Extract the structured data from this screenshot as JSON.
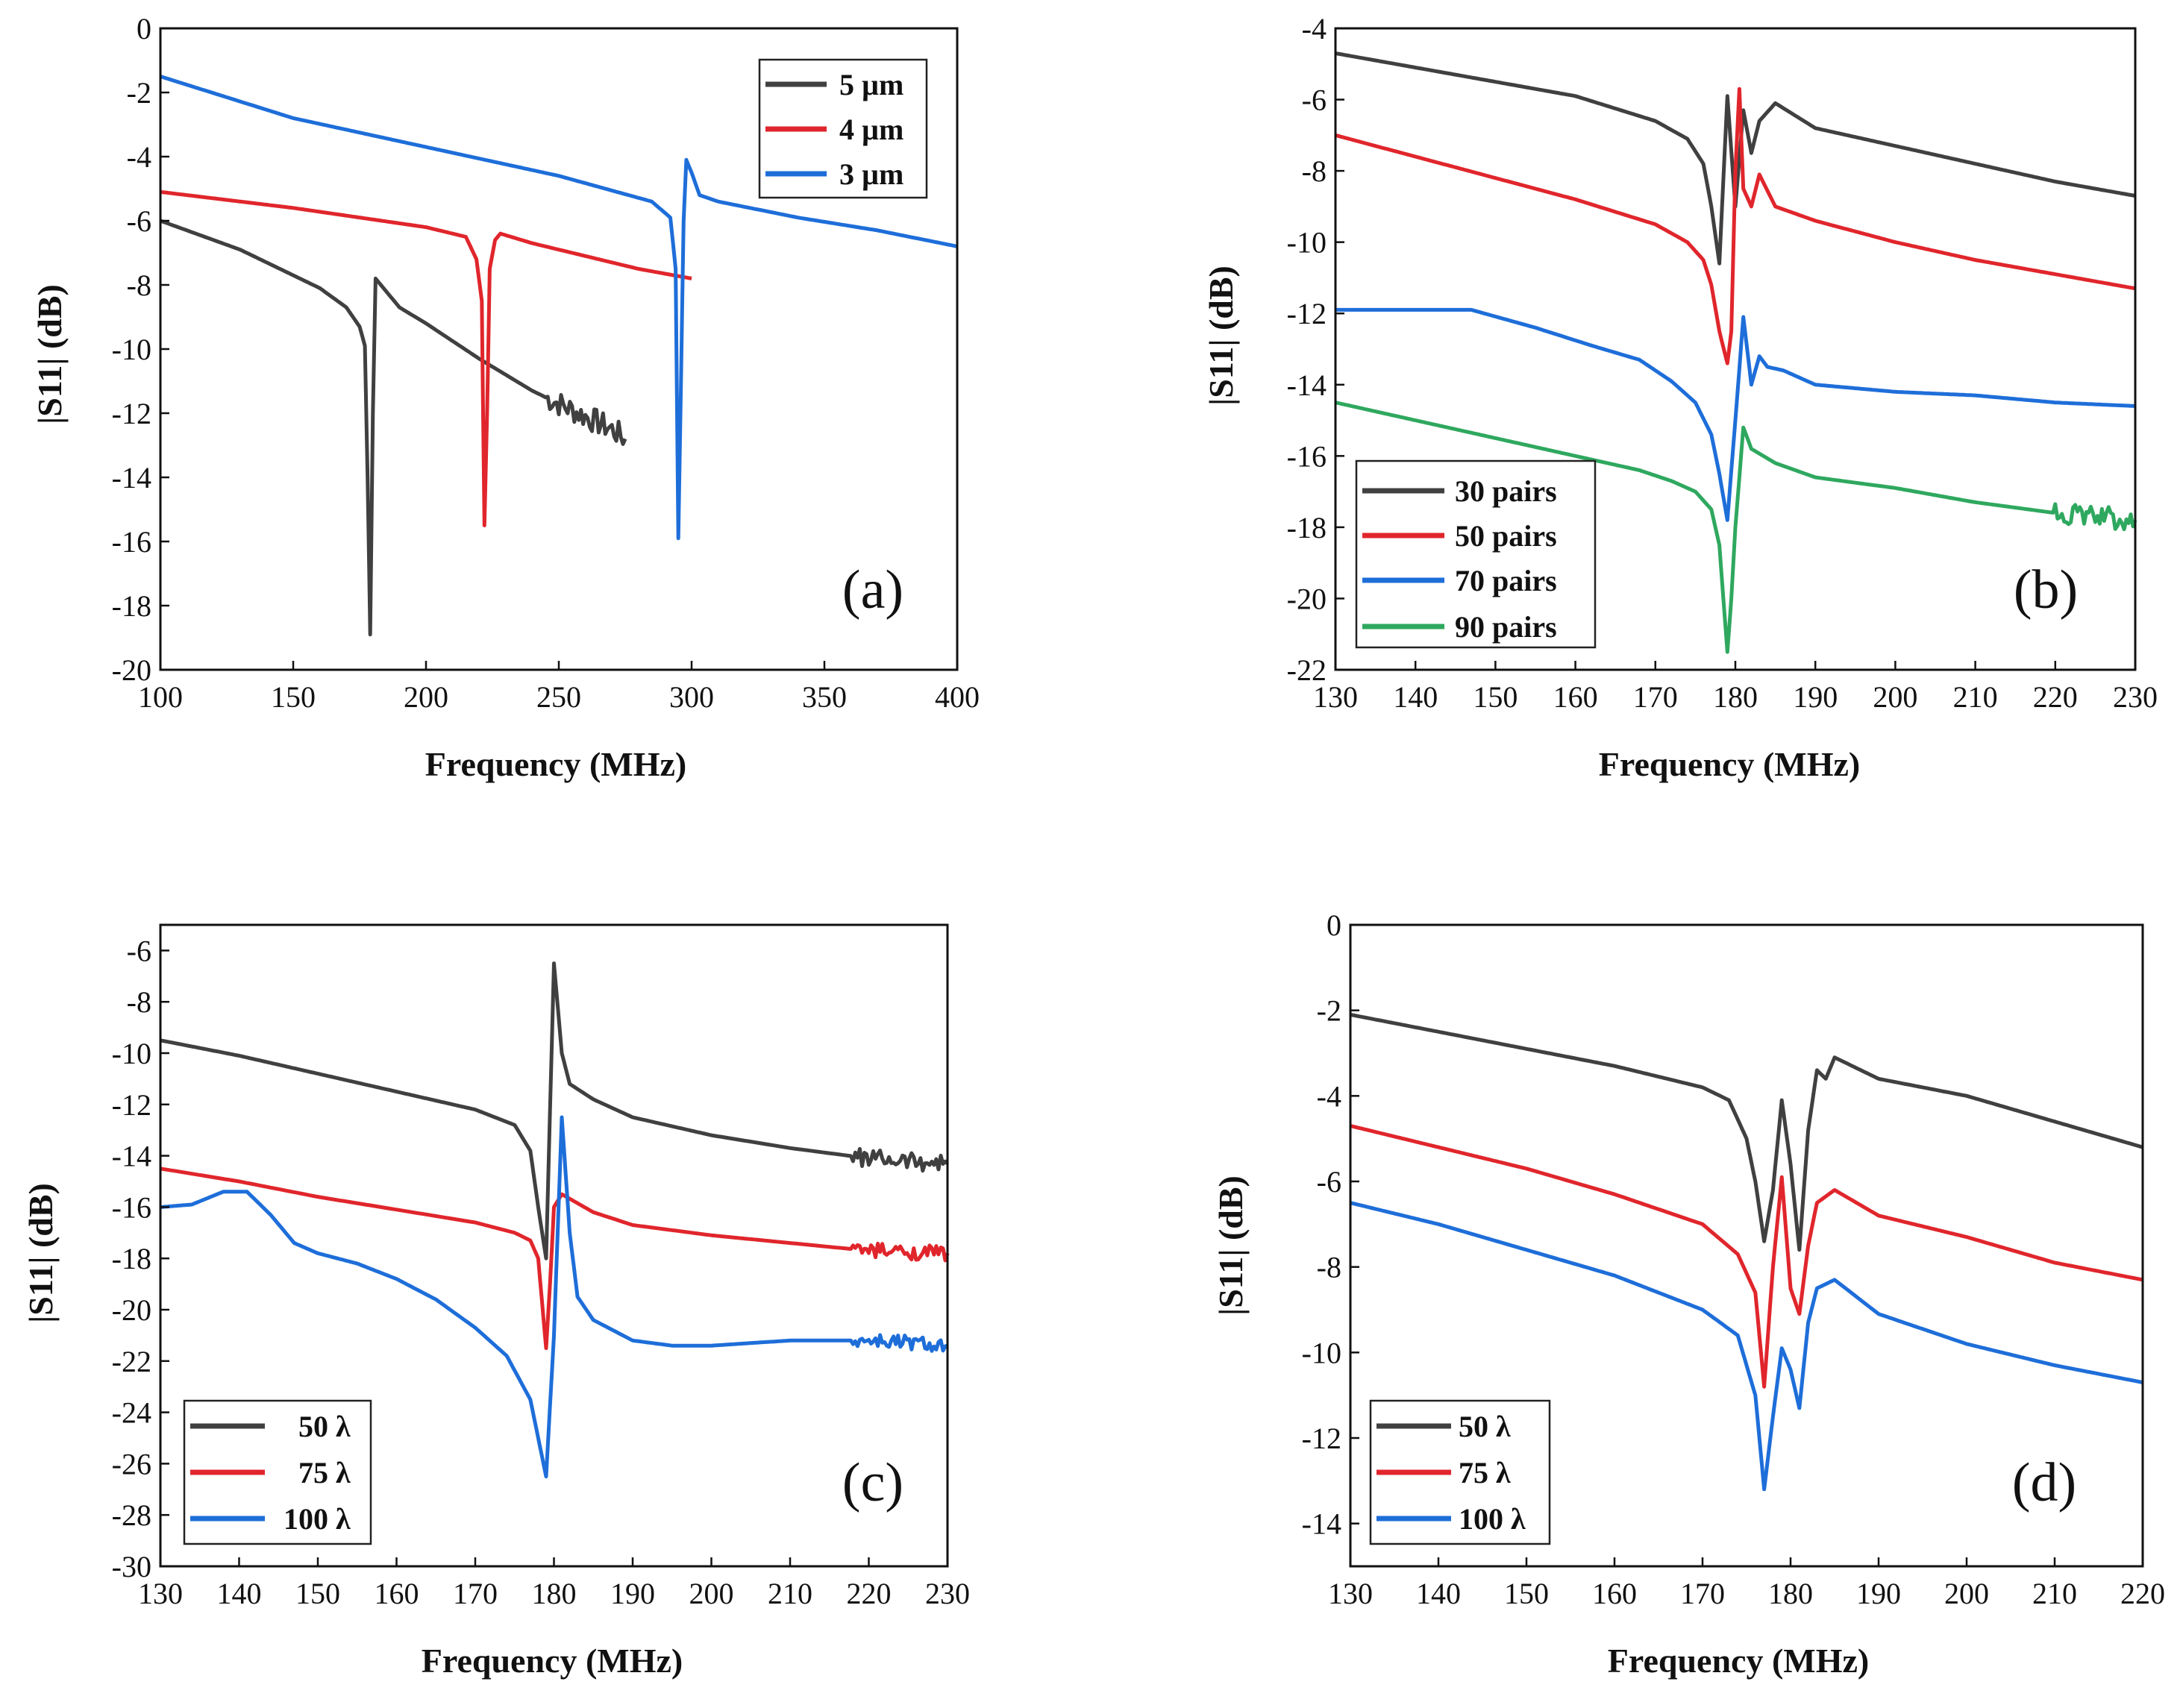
{
  "colors": {
    "black": "#404040",
    "red": "#e0262c",
    "blue": "#1e6ed9",
    "green": "#2fa85f"
  },
  "chart_data": [
    {
      "id": "a",
      "type": "line",
      "panel_label": "(a)",
      "xlabel": "Frequency (MHz)",
      "ylabel": "|S11| (dB)",
      "xlim": [
        100,
        400
      ],
      "ylim": [
        -20,
        0
      ],
      "xticks": [
        100,
        150,
        200,
        250,
        300,
        350,
        400
      ],
      "yticks": [
        0,
        -2,
        -4,
        -6,
        -8,
        -10,
        -12,
        -14,
        -16,
        -18,
        -20
      ],
      "legend_position": "top-right",
      "series": [
        {
          "name": "5 µm",
          "color": "black",
          "x": [
            100,
            130,
            160,
            170,
            175,
            177,
            178,
            179,
            180,
            181,
            183,
            190,
            200,
            220,
            240,
            255,
            265,
            270,
            275
          ],
          "y": [
            -6,
            -6.9,
            -8.1,
            -8.7,
            -9.3,
            -9.9,
            -14,
            -18.9,
            -12,
            -7.8,
            -8,
            -8.7,
            -9.2,
            -10.3,
            -11.3,
            -11.9,
            -12.3,
            -12.5,
            -12.8
          ],
          "noise_from": 245,
          "noise_amp": 0.4
        },
        {
          "name": "4 µm",
          "color": "red",
          "x": [
            100,
            150,
            200,
            215,
            219,
            221,
            222,
            223,
            224,
            226,
            228,
            240,
            260,
            280,
            300
          ],
          "y": [
            -5.1,
            -5.6,
            -6.2,
            -6.5,
            -7.2,
            -8.5,
            -15.5,
            -12,
            -7.5,
            -6.6,
            -6.4,
            -6.7,
            -7.1,
            -7.5,
            -7.8
          ]
        },
        {
          "name": "3 µm",
          "color": "blue",
          "x": [
            100,
            150,
            200,
            250,
            285,
            292,
            294,
            295,
            296,
            297,
            298,
            300,
            303,
            310,
            340,
            370,
            400
          ],
          "y": [
            -1.5,
            -2.8,
            -3.7,
            -4.6,
            -5.4,
            -5.9,
            -7.5,
            -15.9,
            -11,
            -6,
            -4.1,
            -4.5,
            -5.2,
            -5.4,
            -5.9,
            -6.3,
            -6.8
          ]
        }
      ],
      "series_labels": [
        "5 µm",
        "4 µm",
        "3 µm"
      ]
    },
    {
      "id": "b",
      "type": "line",
      "panel_label": "(b)",
      "xlabel": "Frequency (MHz)",
      "ylabel": "|S11| (dB)",
      "xlim": [
        130,
        230
      ],
      "ylim": [
        -22,
        -4
      ],
      "xticks": [
        130,
        140,
        150,
        160,
        170,
        180,
        190,
        200,
        210,
        220,
        230
      ],
      "yticks": [
        -4,
        -6,
        -8,
        -10,
        -12,
        -14,
        -16,
        -18,
        -20,
        -22
      ],
      "legend_position": "bottom-left",
      "series": [
        {
          "name": "30 pairs",
          "color": "black",
          "x": [
            130,
            140,
            150,
            160,
            170,
            174,
            176,
            177,
            178,
            179,
            180,
            181,
            182,
            183,
            185,
            190,
            200,
            210,
            220,
            230
          ],
          "y": [
            -4.7,
            -5.1,
            -5.5,
            -5.9,
            -6.6,
            -7.1,
            -7.8,
            -9,
            -10.6,
            -5.9,
            -9,
            -6.3,
            -7.5,
            -6.6,
            -6.1,
            -6.8,
            -7.3,
            -7.8,
            -8.3,
            -8.7
          ]
        },
        {
          "name": "50 pairs",
          "color": "red",
          "x": [
            130,
            140,
            150,
            160,
            170,
            174,
            176,
            177,
            178,
            179,
            179.5,
            180,
            180.5,
            181,
            182,
            183,
            185,
            190,
            200,
            210,
            220,
            230
          ],
          "y": [
            -7,
            -7.6,
            -8.2,
            -8.8,
            -9.5,
            -10,
            -10.5,
            -11.2,
            -12.5,
            -13.4,
            -12.5,
            -8,
            -5.7,
            -8.5,
            -9,
            -8.1,
            -9,
            -9.4,
            -10,
            -10.5,
            -10.9,
            -11.3
          ]
        },
        {
          "name": "70 pairs",
          "color": "blue",
          "x": [
            130,
            140,
            147,
            155,
            162,
            168,
            172,
            175,
            177,
            178,
            179,
            180,
            181,
            182,
            183,
            184,
            186,
            190,
            200,
            210,
            220,
            230
          ],
          "y": [
            -11.9,
            -11.9,
            -11.9,
            -12.4,
            -12.9,
            -13.3,
            -13.9,
            -14.5,
            -15.4,
            -16.5,
            -17.8,
            -15,
            -12.1,
            -14,
            -13.2,
            -13.5,
            -13.6,
            -14,
            -14.2,
            -14.3,
            -14.5,
            -14.6
          ]
        },
        {
          "name": "90 pairs",
          "color": "green",
          "x": [
            130,
            140,
            150,
            160,
            168,
            172,
            175,
            177,
            178,
            178.5,
            179,
            179.5,
            180,
            181,
            182,
            185,
            190,
            200,
            210,
            220,
            230
          ],
          "y": [
            -14.5,
            -15,
            -15.5,
            -16,
            -16.4,
            -16.7,
            -17,
            -17.5,
            -18.5,
            -20,
            -21.5,
            -20,
            -18,
            -15.2,
            -15.8,
            -16.2,
            -16.6,
            -16.9,
            -17.3,
            -17.6,
            -17.8
          ],
          "noise_from": 220,
          "noise_amp": 0.3
        }
      ],
      "series_labels": [
        "30 pairs",
        "50 pairs",
        "70 pairs",
        "90 pairs"
      ]
    },
    {
      "id": "c",
      "type": "line",
      "panel_label": "(c)",
      "xlabel": "Frequency (MHz)",
      "ylabel": "|S11| (dB)",
      "xlim": [
        130,
        230
      ],
      "ylim": [
        -30,
        -5
      ],
      "xticks": [
        130,
        140,
        150,
        160,
        170,
        180,
        190,
        200,
        210,
        220,
        230
      ],
      "yticks": [
        -6,
        -8,
        -10,
        -12,
        -14,
        -16,
        -18,
        -20,
        -22,
        -24,
        -26,
        -28,
        -30
      ],
      "legend_position": "bottom-left",
      "series": [
        {
          "name": "50 λ",
          "color": "black",
          "x": [
            130,
            140,
            150,
            160,
            170,
            175,
            177,
            178,
            179,
            180,
            181,
            182,
            185,
            190,
            200,
            210,
            220,
            230
          ],
          "y": [
            -9.5,
            -10.1,
            -10.8,
            -11.5,
            -12.2,
            -12.8,
            -13.8,
            -16,
            -18,
            -6.5,
            -10,
            -11.2,
            -11.8,
            -12.5,
            -13.2,
            -13.7,
            -14.1,
            -14.3
          ],
          "noise_from": 218,
          "noise_amp": 0.35
        },
        {
          "name": "75 λ",
          "color": "red",
          "x": [
            130,
            140,
            150,
            160,
            170,
            175,
            177,
            178,
            179,
            179.5,
            180,
            181,
            185,
            190,
            200,
            210,
            220,
            230
          ],
          "y": [
            -14.5,
            -15,
            -15.6,
            -16.1,
            -16.6,
            -17,
            -17.3,
            -18,
            -21.5,
            -19,
            -16,
            -15.5,
            -16.2,
            -16.7,
            -17.1,
            -17.4,
            -17.7,
            -17.8
          ],
          "noise_from": 218,
          "noise_amp": 0.3
        },
        {
          "name": "100 λ",
          "color": "blue",
          "x": [
            130,
            134,
            138,
            141,
            144,
            147,
            150,
            155,
            160,
            165,
            170,
            174,
            177,
            178,
            179,
            180,
            181,
            182,
            183,
            185,
            190,
            195,
            200,
            210,
            220,
            230
          ],
          "y": [
            -16,
            -15.9,
            -15.4,
            -15.4,
            -16.3,
            -17.4,
            -17.8,
            -18.2,
            -18.8,
            -19.6,
            -20.7,
            -21.8,
            -23.5,
            -25,
            -26.5,
            -21,
            -12.5,
            -17,
            -19.5,
            -20.4,
            -21.2,
            -21.4,
            -21.4,
            -21.2,
            -21.2,
            -21.4
          ],
          "noise_from": 218,
          "noise_amp": 0.3
        }
      ],
      "series_labels": [
        "50 λ",
        "75 λ",
        "100 λ"
      ]
    },
    {
      "id": "d",
      "type": "line",
      "panel_label": "(d)",
      "xlabel": "Frequency (MHz)",
      "ylabel": "|S11| (dB)",
      "xlim": [
        130,
        220
      ],
      "ylim": [
        -15,
        0
      ],
      "xticks": [
        130,
        140,
        150,
        160,
        170,
        180,
        190,
        200,
        210,
        220
      ],
      "yticks": [
        0,
        -2,
        -4,
        -6,
        -8,
        -10,
        -12,
        -14
      ],
      "legend_position": "bottom-left",
      "series": [
        {
          "name": "50 λ",
          "color": "black",
          "x": [
            130,
            140,
            150,
            160,
            170,
            173,
            175,
            176,
            177,
            178,
            179,
            180,
            181,
            182,
            183,
            184,
            185,
            190,
            200,
            210,
            220
          ],
          "y": [
            -2.1,
            -2.5,
            -2.9,
            -3.3,
            -3.8,
            -4.1,
            -5,
            -6,
            -7.4,
            -6.2,
            -4.1,
            -5.6,
            -7.6,
            -4.8,
            -3.4,
            -3.6,
            -3.1,
            -3.6,
            -4,
            -4.6,
            -5.2
          ]
        },
        {
          "name": "75 λ",
          "color": "red",
          "x": [
            130,
            140,
            150,
            160,
            170,
            174,
            176,
            177,
            178,
            179,
            180,
            181,
            182,
            183,
            185,
            190,
            200,
            210,
            220
          ],
          "y": [
            -4.7,
            -5.2,
            -5.7,
            -6.3,
            -7,
            -7.7,
            -8.6,
            -10.8,
            -8,
            -5.9,
            -8.5,
            -9.1,
            -7.5,
            -6.5,
            -6.2,
            -6.8,
            -7.3,
            -7.9,
            -8.3
          ]
        },
        {
          "name": "100 λ",
          "color": "blue",
          "x": [
            130,
            140,
            150,
            160,
            170,
            174,
            176,
            177,
            178,
            179,
            180,
            181,
            182,
            183,
            185,
            190,
            200,
            210,
            220
          ],
          "y": [
            -6.5,
            -7,
            -7.6,
            -8.2,
            -9,
            -9.6,
            -11,
            -13.2,
            -11.5,
            -9.9,
            -10.4,
            -11.3,
            -9.3,
            -8.5,
            -8.3,
            -9.1,
            -9.8,
            -10.3,
            -10.7
          ]
        }
      ],
      "series_labels": [
        "50 λ",
        "75 λ",
        "100 λ"
      ]
    }
  ]
}
